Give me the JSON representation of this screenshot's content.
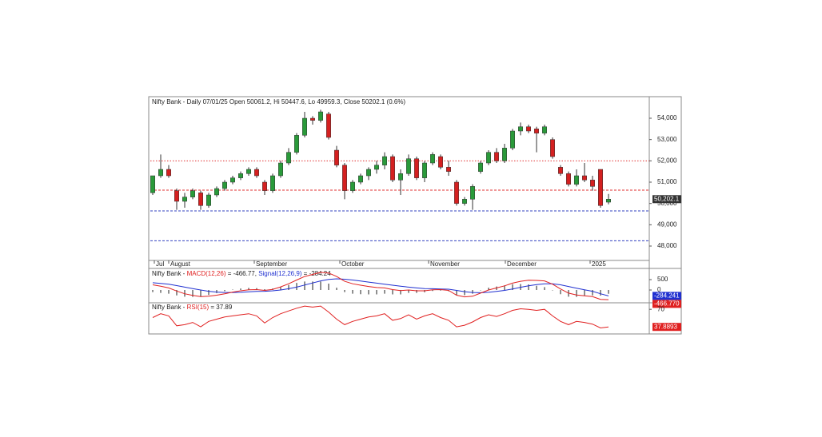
{
  "chart_data": {
    "type": "candlestick",
    "title": "Nifty Bank - Daily 07/01/25 Open 50061.2, Hi 50447.6, Lo 49959.3, Close 50202.1 (0.6%)",
    "xlim": [
      -0.3,
      62.1
    ],
    "xticks": [
      {
        "value": 0.2,
        "label": "Jul"
      },
      {
        "value": 2,
        "label": "August"
      },
      {
        "value": 12.7,
        "label": "September"
      },
      {
        "value": 23.4,
        "label": "October"
      },
      {
        "value": 34.5,
        "label": "November"
      },
      {
        "value": 44.1,
        "label": "December"
      },
      {
        "value": 54.7,
        "label": "2025"
      }
    ],
    "ylim": [
      47325,
      54975
    ],
    "yticks": [
      {
        "value": 48000,
        "label": "48,000"
      },
      {
        "value": 49000,
        "label": "49,000"
      },
      {
        "value": 50000,
        "label": "50,000"
      },
      {
        "value": 51000,
        "label": "51,000"
      },
      {
        "value": 52000,
        "label": "52,000"
      },
      {
        "value": 53000,
        "label": "53,000"
      },
      {
        "value": 54000,
        "label": "54,000"
      }
    ],
    "up_color": "#2a9a3a",
    "down_color": "#d42020",
    "open": [
      50500,
      51300,
      51600,
      50600,
      50100,
      50300,
      50500,
      49900,
      50400,
      50700,
      51000,
      51200,
      51400,
      51600,
      51000,
      50600,
      51300,
      51900,
      52400,
      53200,
      54000,
      53900,
      54200,
      52500,
      51800,
      50600,
      51000,
      51300,
      51600,
      51800,
      52200,
      51100,
      51400,
      52100,
      51200,
      51900,
      52200,
      51700,
      51000,
      50000,
      50200,
      51500,
      51900,
      52400,
      52000,
      52600,
      53400,
      53600,
      53500,
      53300,
      53000,
      51700,
      51400,
      50900,
      51300,
      51100,
      51600,
      50061.2
    ],
    "high": [
      51300,
      52300,
      51800,
      50700,
      50500,
      50700,
      50600,
      50500,
      50800,
      51100,
      51300,
      51500,
      51700,
      51700,
      51100,
      51400,
      52000,
      52600,
      53300,
      54300,
      54100,
      54400,
      54300,
      52700,
      51900,
      51100,
      51400,
      51700,
      52000,
      52400,
      52300,
      51600,
      52300,
      52200,
      52000,
      52400,
      52300,
      52000,
      51100,
      50300,
      50900,
      52000,
      52500,
      52600,
      52800,
      53500,
      53800,
      53700,
      53600,
      53700,
      53100,
      51800,
      51500,
      51600,
      51900,
      51300,
      51600,
      50447.6
    ],
    "low": [
      50400,
      51200,
      51200,
      49700,
      49800,
      50200,
      49700,
      49800,
      50300,
      50600,
      50900,
      51100,
      51300,
      51200,
      50400,
      50500,
      51200,
      51800,
      52300,
      53100,
      53700,
      53800,
      53000,
      51700,
      50200,
      50500,
      50900,
      51100,
      51400,
      51600,
      51000,
      50400,
      51300,
      51100,
      51000,
      51800,
      51600,
      51300,
      49900,
      49900,
      49700,
      51400,
      51800,
      51900,
      51900,
      52500,
      53200,
      53300,
      52400,
      53200,
      52100,
      51300,
      50800,
      50800,
      51000,
      50600,
      49800,
      49959.3
    ],
    "close": [
      51300,
      51600,
      51300,
      50100,
      50300,
      50600,
      49900,
      50400,
      50700,
      51000,
      51200,
      51400,
      51600,
      51300,
      50600,
      51300,
      51900,
      52400,
      53200,
      54000,
      53900,
      54300,
      53100,
      51800,
      50600,
      51000,
      51300,
      51600,
      51800,
      52200,
      51100,
      51400,
      52100,
      51200,
      51900,
      52300,
      51700,
      51500,
      50000,
      50200,
      50800,
      51900,
      52400,
      52000,
      52600,
      53400,
      53600,
      53400,
      53300,
      53600,
      52200,
      51400,
      50900,
      51300,
      51100,
      50800,
      49900,
      50202.1
    ],
    "last_label": "50,202.1",
    "hlines": [
      {
        "value": 52000,
        "color": "#e03030",
        "style": "dotted"
      },
      {
        "value": 50625,
        "color": "#e03030",
        "style": "dashed"
      },
      {
        "value": 49650,
        "color": "#3040c0",
        "style": "dashed"
      },
      {
        "value": 48250,
        "color": "#3040c0",
        "style": "dashed"
      }
    ],
    "macd": {
      "title_parts": [
        "Nifty Bank - ",
        "MACD(12,26)",
        " = -466.77, ",
        "Signal(12,26,9)",
        " = -284.24"
      ],
      "ylim": [
        -577,
        1000
      ],
      "yticks": [
        0,
        500
      ],
      "macd_color": "#e02020",
      "signal_color": "#2030d0",
      "hist_color": "#222222",
      "macd": [
        250,
        180,
        100,
        -50,
        -180,
        -260,
        -320,
        -300,
        -250,
        -180,
        -100,
        -40,
        10,
        20,
        -20,
        30,
        150,
        300,
        480,
        650,
        750,
        850,
        820,
        650,
        420,
        300,
        230,
        170,
        120,
        100,
        20,
        -30,
        0,
        -40,
        -40,
        10,
        20,
        -20,
        -250,
        -330,
        -300,
        -150,
        0,
        100,
        200,
        330,
        420,
        470,
        460,
        440,
        280,
        50,
        -150,
        -240,
        -280,
        -320,
        -450,
        -466.77
      ],
      "signal": [
        350,
        320,
        280,
        210,
        140,
        70,
        0,
        -60,
        -100,
        -120,
        -120,
        -110,
        -90,
        -70,
        -60,
        -40,
        0,
        60,
        140,
        240,
        340,
        440,
        510,
        540,
        520,
        480,
        430,
        380,
        330,
        280,
        230,
        180,
        140,
        100,
        70,
        60,
        50,
        40,
        -20,
        -80,
        -120,
        -130,
        -110,
        -70,
        -20,
        50,
        130,
        200,
        260,
        300,
        300,
        250,
        170,
        90,
        10,
        -60,
        -180,
        -284.24
      ],
      "histogram": [
        -100,
        -140,
        -180,
        -260,
        -320,
        -330,
        -320,
        -240,
        -150,
        -60,
        20,
        70,
        100,
        90,
        40,
        70,
        150,
        240,
        340,
        410,
        410,
        410,
        310,
        110,
        -100,
        -180,
        -200,
        -210,
        -210,
        -180,
        -210,
        -210,
        -140,
        -140,
        -110,
        -50,
        -30,
        -60,
        -230,
        -250,
        -180,
        -20,
        110,
        170,
        220,
        280,
        290,
        270,
        200,
        140,
        -20,
        -200,
        -320,
        -330,
        -290,
        -260,
        -270,
        -182.53
      ],
      "signal_label": "-284.241",
      "macd_label": "-466.770"
    },
    "rsi": {
      "title_parts": [
        "Nifty Bank - ",
        "RSI(15)",
        " = 37.89"
      ],
      "ylim": [
        28,
        79
      ],
      "yticks": [
        70
      ],
      "color": "#e02020",
      "values": [
        55,
        62,
        58,
        40,
        42,
        46,
        38,
        48,
        52,
        56,
        58,
        60,
        62,
        58,
        45,
        55,
        62,
        67,
        72,
        76,
        74,
        76,
        65,
        52,
        42,
        48,
        52,
        56,
        58,
        62,
        50,
        53,
        60,
        52,
        58,
        62,
        55,
        50,
        38,
        41,
        47,
        55,
        60,
        57,
        62,
        68,
        71,
        70,
        68,
        70,
        58,
        48,
        42,
        48,
        46,
        43,
        36,
        37.89
      ],
      "last_label": "37.8893"
    }
  }
}
